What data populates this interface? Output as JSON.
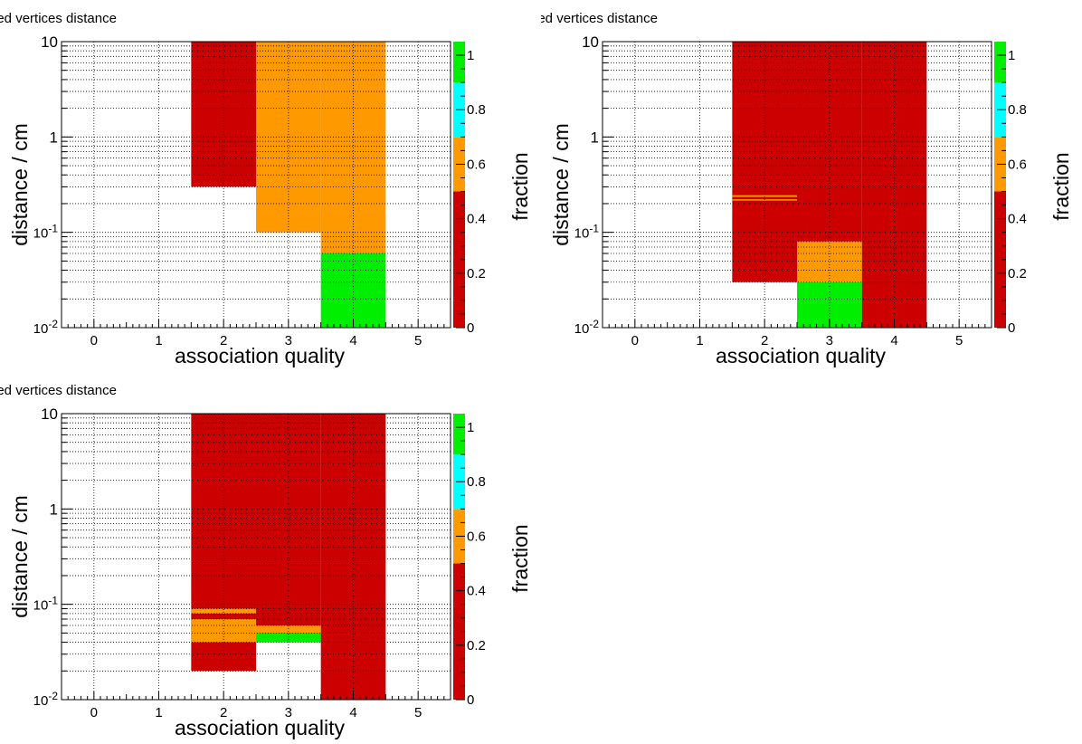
{
  "colors": {
    "red": "#cc0000",
    "orange": "#ff9900",
    "cyan": "#00ffff",
    "green": "#00ee00",
    "white": "#ffffff"
  },
  "chart_data": [
    {
      "type": "heatmap",
      "title": "ned vertices distance",
      "xlabel": "association quality",
      "ylabel": "distance / cm",
      "zlabel": "fraction",
      "x_ticks": [
        "0",
        "1",
        "2",
        "3",
        "4",
        "5"
      ],
      "y_ticks": [
        "10^-2",
        "10^-1",
        "1",
        "10"
      ],
      "z_ticks": [
        "0",
        "0.2",
        "0.4",
        "0.6",
        "0.8",
        "1"
      ],
      "xlim": [
        -0.5,
        5.5
      ],
      "ylim": [
        0.01,
        10
      ],
      "y_scale": "log",
      "zlim": [
        0,
        1.05
      ],
      "grid": true,
      "cells": [
        {
          "x": [
            1.5,
            2.5
          ],
          "y": [
            0.3,
            10
          ],
          "fraction": 0.3
        },
        {
          "x": [
            2.5,
            3.5
          ],
          "y": [
            0.1,
            10
          ],
          "fraction": 0.6
        },
        {
          "x": [
            3.5,
            4.5
          ],
          "y": [
            0.06,
            10
          ],
          "fraction": 0.6
        },
        {
          "x": [
            3.5,
            4.5
          ],
          "y": [
            0.01,
            0.06
          ],
          "fraction": 0.9
        }
      ]
    },
    {
      "type": "heatmap",
      "title": "ned vertices distance",
      "xlabel": "association quality",
      "ylabel": "distance / cm",
      "zlabel": "fraction",
      "x_ticks": [
        "0",
        "1",
        "2",
        "3",
        "4",
        "5"
      ],
      "y_ticks": [
        "10^-2",
        "10^-1",
        "1",
        "10"
      ],
      "z_ticks": [
        "0",
        "0.2",
        "0.4",
        "0.6",
        "0.8",
        "1"
      ],
      "xlim": [
        -0.5,
        5.5
      ],
      "ylim": [
        0.01,
        10
      ],
      "y_scale": "log",
      "zlim": [
        0,
        1.05
      ],
      "grid": true,
      "cells": [
        {
          "x": [
            1.5,
            2.5
          ],
          "y": [
            0.03,
            10
          ],
          "fraction": 0.3
        },
        {
          "x": [
            2.5,
            3.5
          ],
          "y": [
            0.08,
            10
          ],
          "fraction": 0.3
        },
        {
          "x": [
            3.5,
            4.5
          ],
          "y": [
            0.01,
            10
          ],
          "fraction": 0.3
        },
        {
          "x": [
            1.5,
            2.5
          ],
          "y": [
            0.235,
            0.245
          ],
          "fraction": 0.6
        },
        {
          "x": [
            1.5,
            2.5
          ],
          "y": [
            0.215,
            0.222
          ],
          "fraction": 0.6
        },
        {
          "x": [
            2.5,
            3.5
          ],
          "y": [
            0.03,
            0.08
          ],
          "fraction": 0.6
        },
        {
          "x": [
            2.5,
            3.5
          ],
          "y": [
            0.02,
            0.03
          ],
          "fraction": 0.9
        },
        {
          "x": [
            2.5,
            3.5
          ],
          "y": [
            0.01,
            0.02
          ],
          "fraction": 1.0
        }
      ]
    },
    {
      "type": "heatmap",
      "title": "ned vertices distance",
      "xlabel": "association quality",
      "ylabel": "distance / cm",
      "zlabel": "fraction",
      "x_ticks": [
        "0",
        "1",
        "2",
        "3",
        "4",
        "5"
      ],
      "y_ticks": [
        "10^-2",
        "10^-1",
        "1",
        "10"
      ],
      "z_ticks": [
        "0",
        "0.2",
        "0.4",
        "0.6",
        "0.8",
        "1"
      ],
      "xlim": [
        -0.5,
        5.5
      ],
      "ylim": [
        0.01,
        10
      ],
      "y_scale": "log",
      "zlim": [
        0,
        1.05
      ],
      "grid": true,
      "cells": [
        {
          "x": [
            1.5,
            2.5
          ],
          "y": [
            0.02,
            10
          ],
          "fraction": 0.3
        },
        {
          "x": [
            2.5,
            3.5
          ],
          "y": [
            0.04,
            10
          ],
          "fraction": 0.3
        },
        {
          "x": [
            3.5,
            4.5
          ],
          "y": [
            0.01,
            10
          ],
          "fraction": 0.3
        },
        {
          "x": [
            1.5,
            2.5
          ],
          "y": [
            0.08,
            0.09
          ],
          "fraction": 0.6
        },
        {
          "x": [
            1.5,
            2.5
          ],
          "y": [
            0.04,
            0.07
          ],
          "fraction": 0.6
        },
        {
          "x": [
            2.5,
            3.5
          ],
          "y": [
            0.05,
            0.06
          ],
          "fraction": 0.6
        },
        {
          "x": [
            2.5,
            3.5
          ],
          "y": [
            0.04,
            0.05
          ],
          "fraction": 1.0
        }
      ]
    }
  ]
}
